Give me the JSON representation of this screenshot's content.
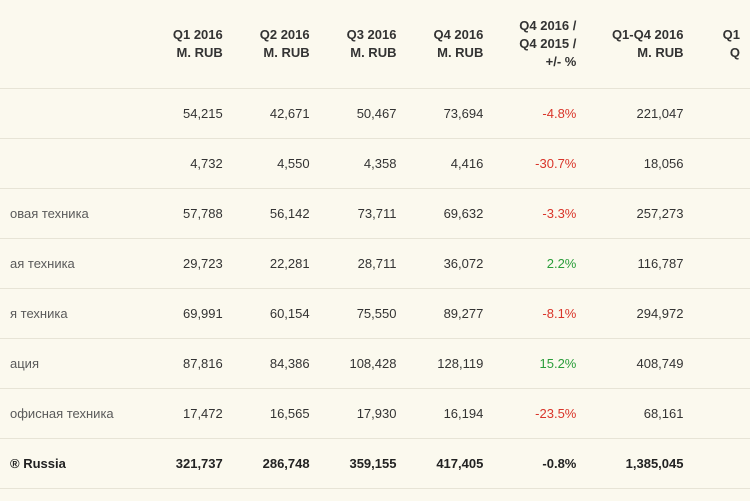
{
  "table": {
    "background_color": "#fbf9ee",
    "border_color": "#e7e4d6",
    "text_color": "#333333",
    "neg_color": "#d9352a",
    "pos_color": "#2a9d3a",
    "header_fontsize": 13,
    "cell_fontsize": 13,
    "columns": [
      {
        "key": "label",
        "line1": "",
        "line2": ""
      },
      {
        "key": "q1",
        "line1": "Q1 2016",
        "line2": "M. RUB"
      },
      {
        "key": "q2",
        "line1": "Q2 2016",
        "line2": "M. RUB"
      },
      {
        "key": "q3",
        "line1": "Q3 2016",
        "line2": "M. RUB"
      },
      {
        "key": "q4",
        "line1": "Q4 2016",
        "line2": "M. RUB"
      },
      {
        "key": "pct",
        "line1": "Q4 2016 /",
        "line2": "Q4 2015 /",
        "line3": "+/- %"
      },
      {
        "key": "ytd",
        "line1": "Q1-Q4 2016",
        "line2": "M. RUB"
      },
      {
        "key": "tail",
        "line1": "Q1",
        "line2": "Q"
      }
    ],
    "rows": [
      {
        "label": "",
        "q1": "54,215",
        "q2": "42,671",
        "q3": "50,467",
        "q4": "73,694",
        "pct": "-4.8%",
        "pct_sign": "neg",
        "ytd": "221,047"
      },
      {
        "label": "",
        "q1": "4,732",
        "q2": "4,550",
        "q3": "4,358",
        "q4": "4,416",
        "pct": "-30.7%",
        "pct_sign": "neg",
        "ytd": "18,056"
      },
      {
        "label": "овая техника",
        "q1": "57,788",
        "q2": "56,142",
        "q3": "73,711",
        "q4": "69,632",
        "pct": "-3.3%",
        "pct_sign": "neg",
        "ytd": "257,273"
      },
      {
        "label": "ая техника",
        "q1": "29,723",
        "q2": "22,281",
        "q3": "28,711",
        "q4": "36,072",
        "pct": "2.2%",
        "pct_sign": "pos",
        "ytd": "116,787"
      },
      {
        "label": "я техника",
        "q1": "69,991",
        "q2": "60,154",
        "q3": "75,550",
        "q4": "89,277",
        "pct": "-8.1%",
        "pct_sign": "neg",
        "ytd": "294,972"
      },
      {
        "label": "ация",
        "q1": "87,816",
        "q2": "84,386",
        "q3": "108,428",
        "q4": "128,119",
        "pct": "15.2%",
        "pct_sign": "pos",
        "ytd": "408,749"
      },
      {
        "label": "офисная техника",
        "q1": "17,472",
        "q2": "16,565",
        "q3": "17,930",
        "q4": "16,194",
        "pct": "-23.5%",
        "pct_sign": "neg",
        "ytd": "68,161"
      },
      {
        "label": "® Russia",
        "q1": "321,737",
        "q2": "286,748",
        "q3": "359,155",
        "q4": "417,405",
        "pct": "-0.8%",
        "pct_sign": "neg",
        "ytd": "1,385,045",
        "total": true
      }
    ]
  }
}
